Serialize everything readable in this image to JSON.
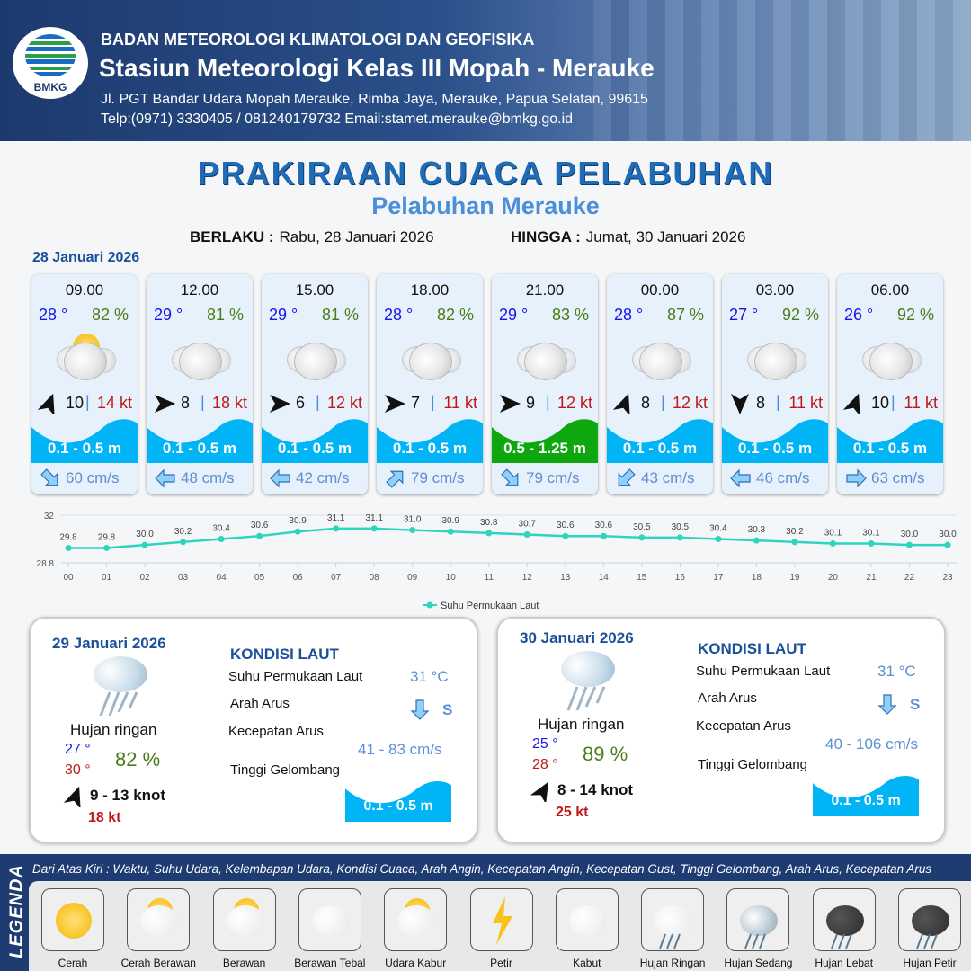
{
  "header": {
    "logo_text": "BMKG",
    "agency": "BADAN METEOROLOGI KLIMATOLOGI DAN GEOFISIKA",
    "station": "Stasiun Meteorologi Kelas III Mopah - Merauke",
    "address": "Jl. PGT Bandar Udara Mopah Merauke, Rimba Jaya, Merauke, Papua Selatan, 99615",
    "contact": "Telp:(0971) 3330405 / 081240179732  Email:stamet.merauke@bmkg.go.id"
  },
  "title": "PRAKIRAAN CUACA PELABUHAN",
  "subtitle": "Pelabuhan Merauke",
  "validity": {
    "from_label": "BERLAKU :",
    "from": "Rabu, 28 Januari 2026",
    "to_label": "HINGGA :",
    "to": "Jumat, 30 Januari 2026"
  },
  "day1_date": "28 Januari 2026",
  "colors": {
    "wave_normal": "#00b4f5",
    "wave_moderate": "#0ea80e",
    "temp": "#1515ee",
    "humidity": "#4a7d1a",
    "gust": "#c01818",
    "current": "#5b8fd6",
    "line": "#2dd4bf"
  },
  "forecasts": [
    {
      "time": "09.00",
      "temp": "28 °",
      "hum": "82 %",
      "weather": "cerah-berawan",
      "wind_dir_deg": 20,
      "wind": "10",
      "gust": "14 kt",
      "wave": "0.1 - 0.5 m",
      "wave_level": "normal",
      "cur_dir_deg": 135,
      "current": "60 cm/s"
    },
    {
      "time": "12.00",
      "temp": "29 °",
      "hum": "81 %",
      "weather": "berawan-tebal",
      "wind_dir_deg": 90,
      "wind": "8",
      "gust": "18 kt",
      "wave": "0.1 - 0.5 m",
      "wave_level": "normal",
      "cur_dir_deg": 270,
      "current": "48 cm/s"
    },
    {
      "time": "15.00",
      "temp": "29 °",
      "hum": "81 %",
      "weather": "berawan-tebal",
      "wind_dir_deg": 90,
      "wind": "6",
      "gust": "12 kt",
      "wave": "0.1 - 0.5 m",
      "wave_level": "normal",
      "cur_dir_deg": 270,
      "current": "42 cm/s"
    },
    {
      "time": "18.00",
      "temp": "28 °",
      "hum": "82 %",
      "weather": "berawan-tebal",
      "wind_dir_deg": 90,
      "wind": "7",
      "gust": "11 kt",
      "wave": "0.1 - 0.5 m",
      "wave_level": "normal",
      "cur_dir_deg": 45,
      "current": "79 cm/s"
    },
    {
      "time": "21.00",
      "temp": "29 °",
      "hum": "83 %",
      "weather": "berawan-tebal",
      "wind_dir_deg": 90,
      "wind": "9",
      "gust": "12 kt",
      "wave": "0.5 - 1.25 m",
      "wave_level": "moderate",
      "cur_dir_deg": 135,
      "current": "79 cm/s"
    },
    {
      "time": "00.00",
      "temp": "28 °",
      "hum": "87 %",
      "weather": "berawan-tebal",
      "wind_dir_deg": 20,
      "wind": "8",
      "gust": "12 kt",
      "wave": "0.1 - 0.5 m",
      "wave_level": "normal",
      "cur_dir_deg": 225,
      "current": "43 cm/s"
    },
    {
      "time": "03.00",
      "temp": "27 °",
      "hum": "92 %",
      "weather": "berawan-tebal",
      "wind_dir_deg": 180,
      "wind": "8",
      "gust": "11 kt",
      "wave": "0.1 - 0.5 m",
      "wave_level": "normal",
      "cur_dir_deg": 270,
      "current": "46 cm/s"
    },
    {
      "time": "06.00",
      "temp": "26 °",
      "hum": "92 %",
      "weather": "berawan-tebal",
      "wind_dir_deg": 20,
      "wind": "10",
      "gust": "11 kt",
      "wave": "0.1 - 0.5 m",
      "wave_level": "normal",
      "cur_dir_deg": 90,
      "current": "63 cm/s"
    }
  ],
  "chart_data": {
    "type": "line",
    "categories": [
      "00",
      "01",
      "02",
      "03",
      "04",
      "05",
      "06",
      "07",
      "08",
      "09",
      "10",
      "11",
      "12",
      "13",
      "14",
      "15",
      "16",
      "17",
      "18",
      "19",
      "20",
      "21",
      "22",
      "23"
    ],
    "series": [
      {
        "name": "Suhu Permukaan Laut",
        "values": [
          29.8,
          29.8,
          30.0,
          30.2,
          30.4,
          30.6,
          30.9,
          31.1,
          31.1,
          31.0,
          30.9,
          30.8,
          30.7,
          30.6,
          30.6,
          30.5,
          30.5,
          30.4,
          30.3,
          30.2,
          30.1,
          30.1,
          30.0,
          30.0
        ]
      }
    ],
    "ylim": [
      28.8,
      32
    ],
    "yticks": [
      "32",
      "28.8"
    ],
    "legend": "bottom",
    "grid": true
  },
  "panels": [
    {
      "date": "29 Januari 2026",
      "weather": "Hujan ringan",
      "tmin": "27 °",
      "tmax": "30 °",
      "hum": "82 %",
      "wind_dir_deg": 20,
      "wind": "9  - 13 knot",
      "gust": "18 kt",
      "kondisi_label": "KONDISI LAUT",
      "sst_label": "Suhu Permukaan Laut",
      "sst": "31 °C",
      "dir_label": "Arah Arus",
      "dir": "S",
      "speed_label": "Kecepatan Arus",
      "speed": "41 - 83 cm/s",
      "wave_label": "Tinggi Gelombang",
      "wave": "0.1 - 0.5 m"
    },
    {
      "date": "30 Januari 2026",
      "weather": "Hujan ringan",
      "tmin": "25 °",
      "tmax": "28 °",
      "hum": "89 %",
      "wind_dir_deg": 30,
      "wind": "8  - 14 knot",
      "gust": "25 kt",
      "kondisi_label": "KONDISI LAUT",
      "sst_label": "Suhu Permukaan Laut",
      "sst": "31 °C",
      "dir_label": "Arah Arus",
      "dir": "S",
      "speed_label": "Kecepatan Arus",
      "speed": "40 - 106 cm/s",
      "wave_label": "Tinggi Gelombang",
      "wave": "0.1 - 0.5 m"
    }
  ],
  "legend": {
    "title": "LEGENDA",
    "description": "Dari Atas Kiri : Waktu, Suhu Udara, Kelembapan Udara, Kondisi Cuaca, Arah Angin, Kecepatan Angin, Kecepatan Gust, Tinggi Gelombang, Arah Arus, Kecepatan Arus",
    "items": [
      {
        "label": "Cerah",
        "icon": "sun-icon"
      },
      {
        "label": "Cerah Berawan",
        "icon": "sun-cloud-icon"
      },
      {
        "label": "Berawan",
        "icon": "cloudy-icon"
      },
      {
        "label": "Berawan Tebal",
        "icon": "overcast-icon"
      },
      {
        "label": "Udara Kabur",
        "icon": "haze-icon"
      },
      {
        "label": "Petir",
        "icon": "lightning-icon"
      },
      {
        "label": "Kabut",
        "icon": "fog-icon"
      },
      {
        "label": "Hujan Ringan",
        "icon": "light-rain-icon"
      },
      {
        "label": "Hujan Sedang",
        "icon": "moderate-rain-icon"
      },
      {
        "label": "Hujan Lebat",
        "icon": "heavy-rain-icon"
      },
      {
        "label": "Hujan Petir",
        "icon": "thunderstorm-icon"
      }
    ]
  }
}
